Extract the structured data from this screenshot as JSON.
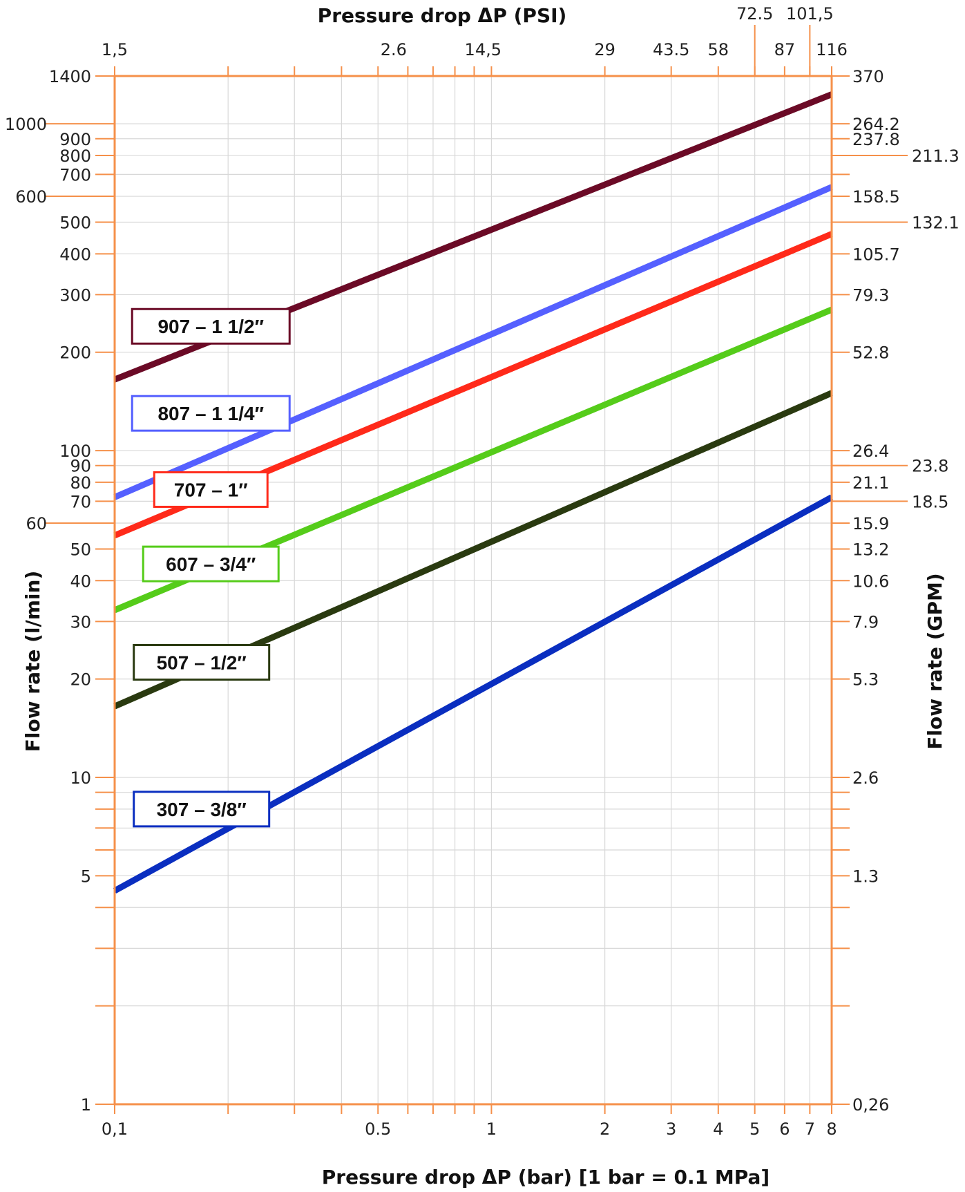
{
  "chart_data": {
    "type": "line",
    "x_scale": "log",
    "y_scale": "log",
    "xlabel": "Pressure drop ΔP (bar) [1 bar = 0.1 MPa]",
    "x2label": "Pressure drop ΔP (PSI)",
    "ylabel": "Flow rate (l/min)",
    "y2label": "Flow rate (GPM)",
    "xlim": [
      0.1,
      8
    ],
    "ylim": [
      1,
      1400
    ],
    "grid": true,
    "x_ticks": [
      {
        "value": 0.1,
        "label": "0,1"
      },
      {
        "value": 0.5,
        "label": "0.5"
      },
      {
        "value": 1,
        "label": "1"
      },
      {
        "value": 2,
        "label": "2"
      },
      {
        "value": 3,
        "label": "3"
      },
      {
        "value": 4,
        "label": "4"
      },
      {
        "value": 5,
        "label": "5"
      },
      {
        "value": 6,
        "label": "6"
      },
      {
        "value": 7,
        "label": "7"
      },
      {
        "value": 8,
        "label": "8"
      }
    ],
    "x_minor_ticks": [
      0.2,
      0.3,
      0.4,
      0.6,
      0.7,
      0.8,
      0.9
    ],
    "x2_ticks": [
      {
        "value": 0.1,
        "label": "1,5"
      },
      {
        "value": 0.55,
        "label": "2.6"
      },
      {
        "value": 0.95,
        "label": "14,5"
      },
      {
        "value": 2,
        "label": "29"
      },
      {
        "value": 3,
        "label": "43.5"
      },
      {
        "value": 4,
        "label": "58"
      },
      {
        "value": 6,
        "label": "87"
      },
      {
        "value": 8,
        "label": "116"
      }
    ],
    "x2_raised_ticks": [
      {
        "value": 5,
        "label": "72.5"
      },
      {
        "value": 7,
        "label": "101,5"
      }
    ],
    "y_ticks": [
      {
        "value": 1,
        "label": "1"
      },
      {
        "value": 5,
        "label": "5"
      },
      {
        "value": 10,
        "label": "10"
      },
      {
        "value": 20,
        "label": "20"
      },
      {
        "value": 30,
        "label": "30"
      },
      {
        "value": 40,
        "label": "40"
      },
      {
        "value": 50,
        "label": "50"
      },
      {
        "value": 60,
        "label": "60"
      },
      {
        "value": 70,
        "label": "70"
      },
      {
        "value": 80,
        "label": "80"
      },
      {
        "value": 90,
        "label": "90"
      },
      {
        "value": 100,
        "label": "100"
      },
      {
        "value": 200,
        "label": "200"
      },
      {
        "value": 300,
        "label": "300"
      },
      {
        "value": 400,
        "label": "400"
      },
      {
        "value": 500,
        "label": "500"
      },
      {
        "value": 600,
        "label": "600"
      },
      {
        "value": 700,
        "label": "700"
      },
      {
        "value": 800,
        "label": "800"
      },
      {
        "value": 900,
        "label": "900"
      },
      {
        "value": 1000,
        "label": "1000"
      },
      {
        "value": 1400,
        "label": "1400"
      }
    ],
    "y_grid": [
      2,
      3,
      4,
      5,
      6,
      7,
      8,
      9,
      10,
      20,
      30,
      40,
      50,
      60,
      70,
      80,
      90,
      100,
      200,
      300,
      400,
      500,
      600,
      700,
      800,
      900,
      1000
    ],
    "y2_ticks": [
      {
        "value": 1,
        "label": "0,26"
      },
      {
        "value": 5,
        "label": "1.3"
      },
      {
        "value": 10,
        "label": "2.6"
      },
      {
        "value": 20,
        "label": "5.3"
      },
      {
        "value": 30,
        "label": "7.9"
      },
      {
        "value": 40,
        "label": "10.6"
      },
      {
        "value": 50,
        "label": "13.2"
      },
      {
        "value": 60,
        "label": "15.9"
      },
      {
        "value": 80,
        "label": "21.1"
      },
      {
        "value": 100,
        "label": "26.4"
      },
      {
        "value": 200,
        "label": "52.8"
      },
      {
        "value": 300,
        "label": "79.3"
      },
      {
        "value": 400,
        "label": "105.7"
      },
      {
        "value": 600,
        "label": "158.5"
      },
      {
        "value": 900,
        "label": "237.8"
      },
      {
        "value": 1000,
        "label": "264.2"
      },
      {
        "value": 1400,
        "label": "370"
      }
    ],
    "y2_extended_ticks": [
      {
        "value": 70,
        "label": "18.5"
      },
      {
        "value": 90,
        "label": "23.8"
      },
      {
        "value": 500,
        "label": "132.1"
      },
      {
        "value": 800,
        "label": "211.3"
      }
    ],
    "series": [
      {
        "label": "907 – 1 1/2″",
        "color": "#6b0a26",
        "x": [
          0.1,
          8
        ],
        "y": [
          165,
          1230
        ],
        "label_at": {
          "x": 0.18,
          "y": 240
        }
      },
      {
        "label": "807 – 1 1/4″",
        "color": "#5560ff",
        "x": [
          0.1,
          8
        ],
        "y": [
          72,
          640
        ],
        "label_at": {
          "x": 0.18,
          "y": 130
        }
      },
      {
        "label": "707 – 1″",
        "color": "#ff2a1a",
        "x": [
          0.1,
          8
        ],
        "y": [
          55,
          460
        ],
        "label_at": {
          "x": 0.18,
          "y": 76
        }
      },
      {
        "label": "607 – 3/4″",
        "color": "#55cc1a",
        "x": [
          0.1,
          8
        ],
        "y": [
          32.5,
          270
        ],
        "label_at": {
          "x": 0.18,
          "y": 45
        }
      },
      {
        "label": "507 – 1/2″",
        "color": "#2a3a10",
        "x": [
          0.1,
          8
        ],
        "y": [
          16.5,
          150
        ],
        "label_at": {
          "x": 0.17,
          "y": 22.5
        }
      },
      {
        "label": "307 – 3/8″",
        "color": "#0a2ec0",
        "x": [
          0.1,
          8
        ],
        "y": [
          4.5,
          72
        ],
        "label_at": {
          "x": 0.17,
          "y": 8
        }
      }
    ]
  },
  "colors": {
    "axis": "#f5904a",
    "grid": "#d8d8d8",
    "text": "#222222"
  }
}
